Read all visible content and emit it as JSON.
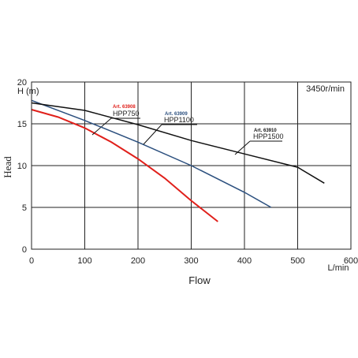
{
  "chart_data": {
    "type": "line",
    "x_label": "Flow",
    "x_unit": "L/min",
    "y_label": "Head",
    "y_unit": "H (m)",
    "annotation": "3450r/min",
    "xlim": [
      0,
      600
    ],
    "xticks": [
      0,
      100,
      200,
      300,
      400,
      500,
      600
    ],
    "ylim": [
      0,
      20
    ],
    "yticks": [
      0,
      5,
      10,
      15,
      20
    ],
    "grid": true,
    "series": [
      {
        "name": "HPP750",
        "article": "Art. 63908",
        "color": "#e0201b",
        "x": [
          0,
          50,
          100,
          150,
          200,
          250,
          300,
          350
        ],
        "values": [
          16.7,
          15.8,
          14.5,
          12.8,
          10.8,
          8.5,
          5.8,
          3.3
        ]
      },
      {
        "name": "HPP1100",
        "article": "Art. 63909",
        "color": "#2b4f7e",
        "x": [
          0,
          100,
          200,
          300,
          400,
          450
        ],
        "values": [
          17.8,
          15.4,
          12.8,
          10.0,
          6.8,
          5.0
        ]
      },
      {
        "name": "HPP1500",
        "article": "Art. 63910",
        "color": "#111111",
        "x": [
          0,
          100,
          200,
          300,
          400,
          500,
          550
        ],
        "values": [
          17.5,
          16.6,
          14.9,
          13.0,
          11.4,
          9.8,
          7.9
        ]
      }
    ]
  }
}
